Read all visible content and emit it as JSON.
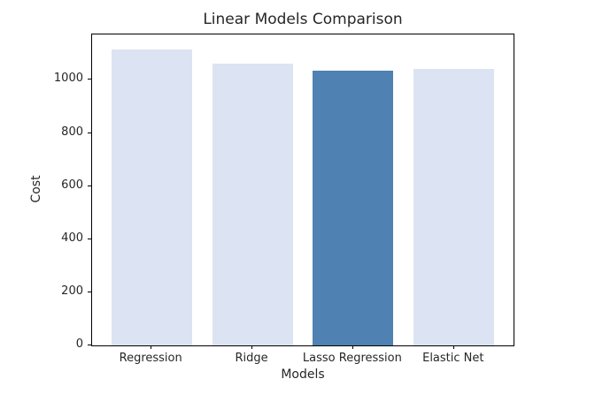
{
  "chart_data": {
    "type": "bar",
    "title": "Linear Models Comparison",
    "xlabel": "Models",
    "ylabel": "Cost",
    "categories": [
      "Regression",
      "Ridge",
      "Lasso Regression",
      "Elastic Net"
    ],
    "values": [
      1115,
      1063,
      1036,
      1043
    ],
    "bar_colors": [
      "#dce4f3",
      "#dce4f3",
      "#4f81b2",
      "#dce4f3"
    ],
    "default_bar_color": "#dce4f3",
    "highlight_bar_color": "#4f81b2",
    "highlighted_category": "Lasso Regression",
    "yticks": [
      0,
      200,
      400,
      600,
      800,
      1000
    ],
    "ylim": [
      0,
      1171
    ],
    "xlim": [
      -0.59,
      3.59
    ],
    "bar_width": 0.8,
    "grid": false,
    "legend": false
  }
}
